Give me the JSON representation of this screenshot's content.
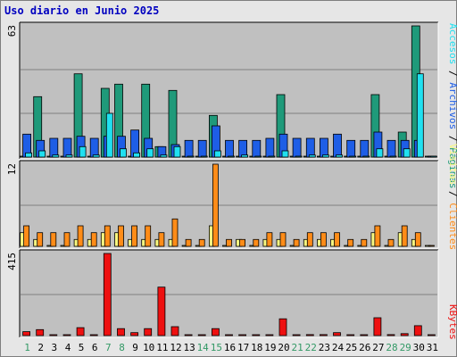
{
  "window": {
    "title": "Uso diario en Junio 2025"
  },
  "colors": {
    "frame_bg": "#e6e6e6",
    "panel_bg": "#c0c0c0",
    "title": "#0000c0",
    "visitas": "#f8f880",
    "paginas": "#1f9a7a",
    "archivos": "#1e5ee6",
    "accesos": "#20e0f0",
    "clientes": "#ff8c18",
    "kbytes": "#ee1010",
    "weekend_label": "#339966",
    "weekday_label": "#000000"
  },
  "chart_data": [
    {
      "type": "bar",
      "name_label": "Accesos / Archivos / Páginas",
      "ymax_label": "63",
      "ylim": [
        0,
        63
      ],
      "categories": [
        "1",
        "2",
        "3",
        "4",
        "5",
        "6",
        "7",
        "8",
        "9",
        "10",
        "11",
        "12",
        "13",
        "14",
        "15",
        "16",
        "17",
        "18",
        "19",
        "20",
        "21",
        "22",
        "23",
        "24",
        "25",
        "26",
        "27",
        "28",
        "29",
        "30",
        "31"
      ],
      "series": [
        {
          "name": "Páginas",
          "color": "#1f9a7a",
          "values": [
            0,
            29,
            0,
            0,
            40,
            0,
            33,
            35,
            0,
            35,
            5,
            32,
            0,
            0,
            20,
            0,
            0,
            0,
            0,
            30,
            0,
            0,
            0,
            0,
            0,
            0,
            30,
            0,
            12,
            63,
            0
          ]
        },
        {
          "name": "Archivos",
          "color": "#1e5ee6",
          "values": [
            11,
            8,
            9,
            9,
            10,
            9,
            10,
            10,
            13,
            9,
            5,
            6,
            8,
            8,
            15,
            8,
            8,
            8,
            9,
            11,
            9,
            9,
            9,
            11,
            8,
            8,
            12,
            8,
            8,
            8,
            0
          ]
        },
        {
          "name": "Accesos",
          "color": "#20e0f0",
          "values": [
            2,
            3,
            1,
            1,
            5,
            1,
            21,
            4,
            2,
            4,
            1,
            5,
            0,
            0,
            3,
            0,
            1,
            0,
            0,
            3,
            0,
            1,
            1,
            1,
            0,
            0,
            4,
            0,
            4,
            40,
            0
          ]
        }
      ]
    },
    {
      "type": "bar",
      "name_label": "Visitas / Clientes",
      "ymax_label": "12",
      "ylim": [
        0,
        12
      ],
      "categories": [
        "1",
        "2",
        "3",
        "4",
        "5",
        "6",
        "7",
        "8",
        "9",
        "10",
        "11",
        "12",
        "13",
        "14",
        "15",
        "16",
        "17",
        "18",
        "19",
        "20",
        "21",
        "22",
        "23",
        "24",
        "25",
        "26",
        "27",
        "28",
        "29",
        "30",
        "31"
      ],
      "series": [
        {
          "name": "Visitas",
          "color": "#f8f880",
          "values": [
            2,
            1,
            0,
            0,
            1,
            1,
            2,
            2,
            1,
            1,
            1,
            1,
            0,
            0,
            3,
            0,
            1,
            0,
            1,
            1,
            0,
            1,
            1,
            1,
            0,
            0,
            2,
            0,
            2,
            1,
            0
          ]
        },
        {
          "name": "Clientes",
          "color": "#ff8c18",
          "values": [
            3,
            2,
            2,
            2,
            3,
            2,
            3,
            3,
            3,
            3,
            2,
            4,
            1,
            1,
            12,
            1,
            1,
            1,
            2,
            2,
            1,
            2,
            2,
            2,
            1,
            1,
            3,
            1,
            3,
            2,
            0
          ]
        }
      ]
    },
    {
      "type": "bar",
      "name_label": "KBytes",
      "ymax_label": "415",
      "ylim": [
        0,
        415
      ],
      "categories": [
        "1",
        "2",
        "3",
        "4",
        "5",
        "6",
        "7",
        "8",
        "9",
        "10",
        "11",
        "12",
        "13",
        "14",
        "15",
        "16",
        "17",
        "18",
        "19",
        "20",
        "21",
        "22",
        "23",
        "24",
        "25",
        "26",
        "27",
        "28",
        "29",
        "30",
        "31"
      ],
      "series": [
        {
          "name": "KBytes",
          "color": "#ee1010",
          "values": [
            20,
            30,
            0,
            0,
            40,
            0,
            415,
            35,
            15,
            35,
            245,
            45,
            0,
            0,
            35,
            0,
            0,
            0,
            0,
            85,
            0,
            5,
            5,
            15,
            0,
            0,
            90,
            5,
            10,
            50,
            0
          ]
        }
      ]
    }
  ],
  "day_labels": [
    "1",
    "2",
    "3",
    "4",
    "5",
    "6",
    "7",
    "8",
    "9",
    "10",
    "11",
    "12",
    "13",
    "14",
    "15",
    "16",
    "17",
    "18",
    "19",
    "20",
    "21",
    "22",
    "23",
    "24",
    "25",
    "26",
    "27",
    "28",
    "29",
    "30",
    "31"
  ],
  "weekend_days": [
    "1",
    "7",
    "8",
    "14",
    "15",
    "21",
    "22",
    "28",
    "29"
  ],
  "side_labels": {
    "top": [
      "Accesos",
      "/",
      "Archivos",
      "/",
      "Páginas"
    ],
    "middle": [
      "Visitas",
      "/",
      "Clientes"
    ],
    "bottom": [
      "KBytes"
    ]
  }
}
